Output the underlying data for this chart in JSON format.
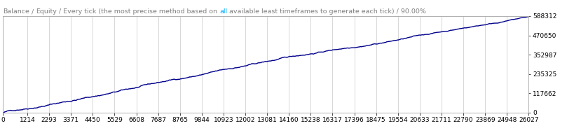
{
  "title_color_parts": [
    {
      "text": "Balance",
      "color": "#808080"
    },
    {
      "text": " / ",
      "color": "#808080"
    },
    {
      "text": "Equity",
      "color": "#808080"
    },
    {
      "text": " / Every tick (the most precise method based on ",
      "color": "#808080"
    },
    {
      "text": "all",
      "color": "#00aaff"
    },
    {
      "text": " available least timeframes to generate each tick) / 90.00%",
      "color": "#808080"
    }
  ],
  "x_ticks": [
    0,
    1214,
    2293,
    3371,
    4450,
    5529,
    6608,
    7687,
    8765,
    9844,
    10923,
    12002,
    13081,
    14160,
    15238,
    16317,
    17396,
    18475,
    19554,
    20633,
    21711,
    22790,
    23869,
    24948,
    26027
  ],
  "y_ticks_right": [
    0,
    117662,
    235325,
    352987,
    470650,
    588312
  ],
  "y_min": 0,
  "y_max": 588312,
  "x_min": 0,
  "x_max": 26027,
  "line_color": "#00008b",
  "background_color": "#ffffff",
  "grid_color": "#c8c8c8",
  "title_fontsize": 6.8,
  "tick_fontsize": 6.5,
  "line_width": 1.0
}
